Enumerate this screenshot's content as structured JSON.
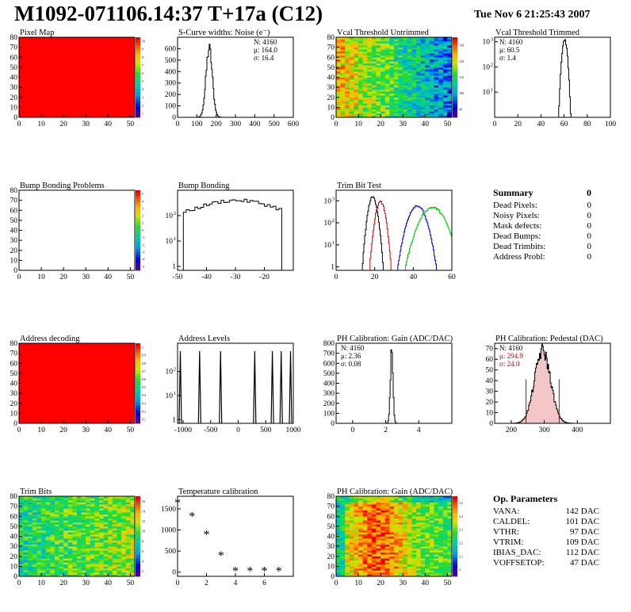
{
  "header": {
    "title": "M1092-071106.14:37 T+17a (C12)",
    "date": "Tue Nov  6 21:25:43 2007"
  },
  "summary": {
    "title": "Summary",
    "total": "0",
    "rows": [
      {
        "label": "Dead Pixels:",
        "value": "0"
      },
      {
        "label": "Noisy Pixels:",
        "value": "0"
      },
      {
        "label": "Mask defects:",
        "value": "0"
      },
      {
        "label": "Dead Bumps:",
        "value": "0"
      },
      {
        "label": "Dead Trimbits:",
        "value": "0"
      },
      {
        "label": "Address Probl:",
        "value": "0"
      }
    ]
  },
  "op_params": {
    "title": "Op. Parameters",
    "rows": [
      {
        "label": "VANA:",
        "value": "142 DAC"
      },
      {
        "label": "CALDEL:",
        "value": "101 DAC"
      },
      {
        "label": "VTHR:",
        "value": "97 DAC"
      },
      {
        "label": "VTRIM:",
        "value": "109 DAC"
      },
      {
        "label": "IBIAS_DAC:",
        "value": "112 DAC"
      },
      {
        "label": "VOFFSETOP:",
        "value": "47 DAC"
      }
    ]
  },
  "chart_data": [
    {
      "id": "pixel-map",
      "type": "heatmap",
      "title": "Pixel Map",
      "xlim": [
        0,
        52
      ],
      "ylim": [
        0,
        80
      ],
      "xticks": [
        0,
        10,
        20,
        30,
        40,
        50
      ],
      "yticks": [
        0,
        10,
        20,
        30,
        40,
        50,
        60,
        70,
        80
      ],
      "pattern": "uniform-red",
      "palette": "rainbow",
      "zticks": [
        "1",
        "2",
        "3",
        "4",
        "5",
        "6",
        "7",
        "8",
        "9",
        "10"
      ]
    },
    {
      "id": "scurve-widths",
      "type": "bar",
      "title": "S-Curve widths: Noise (e⁻)",
      "xlim": [
        0,
        600
      ],
      "ylim": [
        0,
        700
      ],
      "xticks": [
        0,
        100,
        200,
        300,
        400,
        500,
        600
      ],
      "yticks": [
        0,
        100,
        200,
        300,
        400,
        500,
        600
      ],
      "stats": [
        "N: 4160",
        "μ: 164.0",
        "σ: 16.4"
      ],
      "hist": {
        "mean": 164,
        "sigma": 16.4,
        "peak": 600
      },
      "fill": "none"
    },
    {
      "id": "vcal-untrimmed",
      "type": "heatmap",
      "title": "Vcal Threshold Untrimmed",
      "xlim": [
        0,
        52
      ],
      "ylim": [
        0,
        80
      ],
      "xticks": [
        0,
        10,
        20,
        30,
        40,
        50
      ],
      "yticks": [
        0,
        10,
        20,
        30,
        40,
        50,
        60,
        70,
        80
      ],
      "pattern": "gradient-x",
      "palette": "rainbow",
      "zticks": [
        "90",
        "100",
        "110",
        "120",
        "130"
      ]
    },
    {
      "id": "vcal-trimmed",
      "type": "bar",
      "title": "Vcal Threshold Trimmed",
      "xlim": [
        0,
        100
      ],
      "ylog": true,
      "ylim": [
        1,
        1500
      ],
      "xticks": [
        0,
        20,
        40,
        60,
        80,
        100
      ],
      "yticks": [
        10,
        100,
        1000
      ],
      "stats": [
        "N: 4160",
        "μ: 60.5",
        "σ: 1.4"
      ],
      "hist": {
        "mean": 60.5,
        "sigma": 1.4,
        "peak": 1200
      },
      "fill": "none"
    },
    {
      "id": "bump-problems",
      "type": "heatmap",
      "title": "Bump Bonding Problems",
      "xlim": [
        0,
        52
      ],
      "ylim": [
        0,
        80
      ],
      "xticks": [
        0,
        10,
        20,
        30,
        40,
        50
      ],
      "yticks": [
        0,
        10,
        20,
        30,
        40,
        50,
        60,
        70,
        80
      ],
      "pattern": "empty",
      "palette": "rainbow",
      "zticks": [
        "-5",
        "-4",
        "-3",
        "-2",
        "-1",
        "0",
        "1",
        "2",
        "3",
        "4",
        "5"
      ]
    },
    {
      "id": "bump-bonding",
      "type": "bar",
      "title": "Bump Bonding",
      "xlim": [
        -50,
        -10
      ],
      "ylog": true,
      "ylim": [
        0.7,
        1000
      ],
      "xticks": [
        -50,
        -40,
        -30,
        -20
      ],
      "yticks": [
        1,
        10,
        100
      ],
      "hist": {
        "mean": -30,
        "sigma": 6.5,
        "peak": 400,
        "min": -48,
        "max": -15,
        "width": 1
      },
      "fill": "none"
    },
    {
      "id": "trim-bit-test",
      "type": "line",
      "title": "Trim Bit Test",
      "xlim": [
        0,
        60
      ],
      "ylog": true,
      "ylim": [
        0.7,
        3000
      ],
      "xticks": [
        0,
        20,
        40,
        60
      ],
      "yticks": [
        1,
        10,
        100,
        1000
      ],
      "series": [
        {
          "color": "#000000",
          "hist": {
            "mean": 19,
            "sigma": 1.4,
            "peak": 1500
          }
        },
        {
          "color": "#cc0000",
          "hist": {
            "mean": 23,
            "sigma": 1.5,
            "peak": 900
          }
        },
        {
          "color": "#0000cc",
          "hist": {
            "mean": 42,
            "sigma": 2.8,
            "peak": 600
          }
        },
        {
          "color": "#00cc00",
          "hist": {
            "mean": 50,
            "sigma": 4,
            "peak": 500
          }
        }
      ]
    },
    {
      "id": "address-decoding",
      "type": "heatmap",
      "title": "Address decoding",
      "xlim": [
        0,
        52
      ],
      "ylim": [
        0,
        80
      ],
      "xticks": [
        0,
        10,
        20,
        30,
        40,
        50
      ],
      "yticks": [
        0,
        10,
        20,
        30,
        40,
        50,
        60,
        70,
        80
      ],
      "pattern": "uniform-red",
      "palette": "rainbow",
      "zticks": [
        "0.1",
        "0.2",
        "0.3",
        "0.4",
        "0.5",
        "0.6",
        "0.7",
        "0.8",
        "0.9",
        "1"
      ]
    },
    {
      "id": "address-levels",
      "type": "bar",
      "title": "Address Levels",
      "xlim": [
        -1100,
        1000
      ],
      "ylog": true,
      "ylim": [
        0.7,
        1500
      ],
      "xticks": [
        -1000,
        -500,
        0,
        500,
        1000
      ],
      "yticks": [
        1,
        10,
        100
      ],
      "peaks": [
        -1050,
        -700,
        -320,
        300,
        620,
        780,
        950
      ],
      "peak_value": 700,
      "fill": "none"
    },
    {
      "id": "ph-gain",
      "type": "bar",
      "title": "PH Calibration: Gain (ADC/DAC)",
      "xlim": [
        -1,
        6
      ],
      "ylim": [
        0,
        800
      ],
      "xticks": [
        0,
        2,
        4
      ],
      "yticks": [
        0,
        100,
        200,
        300,
        400,
        500,
        600,
        700,
        800
      ],
      "stats": [
        "N: 4160",
        "μ: 2.36",
        "σ: 0.08"
      ],
      "hist": {
        "mean": 2.36,
        "sigma": 0.08,
        "peak": 700
      },
      "fill": "none"
    },
    {
      "id": "ph-pedestal",
      "type": "bar",
      "title": "PH Calibration: Pedestal (DAC)",
      "xlim": [
        150,
        500
      ],
      "ylim": [
        0,
        75
      ],
      "xticks": [
        200,
        300,
        400
      ],
      "yticks": [
        0,
        10,
        20,
        30,
        40,
        50,
        60,
        70
      ],
      "stats": [
        "N: 4160",
        "μ: 294.9",
        "σ: 24.0"
      ],
      "stat_colors": [
        "#000000",
        "#cc0000",
        "#cc0000"
      ],
      "hist": {
        "mean": 294.9,
        "sigma": 24,
        "peak": 68
      },
      "fill": "hatch",
      "markers": [
        245,
        345
      ]
    },
    {
      "id": "trim-bits",
      "type": "heatmap",
      "title": "Trim Bits",
      "xlim": [
        0,
        52
      ],
      "ylim": [
        0,
        80
      ],
      "xticks": [
        0,
        10,
        20,
        30,
        40,
        50
      ],
      "yticks": [
        0,
        10,
        20,
        30,
        40,
        50,
        60,
        70,
        80
      ],
      "pattern": "noise-mid",
      "palette": "rainbow",
      "zticks": [
        "2",
        "4",
        "6",
        "8",
        "10",
        "12",
        "14",
        "16"
      ]
    },
    {
      "id": "temp-calibration",
      "type": "scatter",
      "title": "Temperature calibration",
      "xlim": [
        0,
        8
      ],
      "ylim": [
        -100,
        1800
      ],
      "xticks": [
        0,
        2,
        4,
        6
      ],
      "yticks": [
        0,
        500,
        1000,
        1500
      ],
      "x": [
        0,
        1,
        2,
        3,
        4,
        5,
        6,
        7
      ],
      "y": [
        1620,
        1300,
        870,
        370,
        0,
        0,
        0,
        0
      ]
    },
    {
      "id": "ph-gain-map",
      "type": "heatmap",
      "title": "PH Calibration: Gain (ADC/DAC)",
      "xlim": [
        0,
        52
      ],
      "ylim": [
        0,
        80
      ],
      "xticks": [
        0,
        10,
        20,
        30,
        40,
        50
      ],
      "yticks": [
        0,
        10,
        20,
        30,
        40,
        50,
        60,
        70,
        80
      ],
      "pattern": "gain-map",
      "palette": "rainbow",
      "zticks": [
        "2",
        "2.1",
        "2.2",
        "2.3",
        "2.4",
        "2.5"
      ]
    }
  ]
}
